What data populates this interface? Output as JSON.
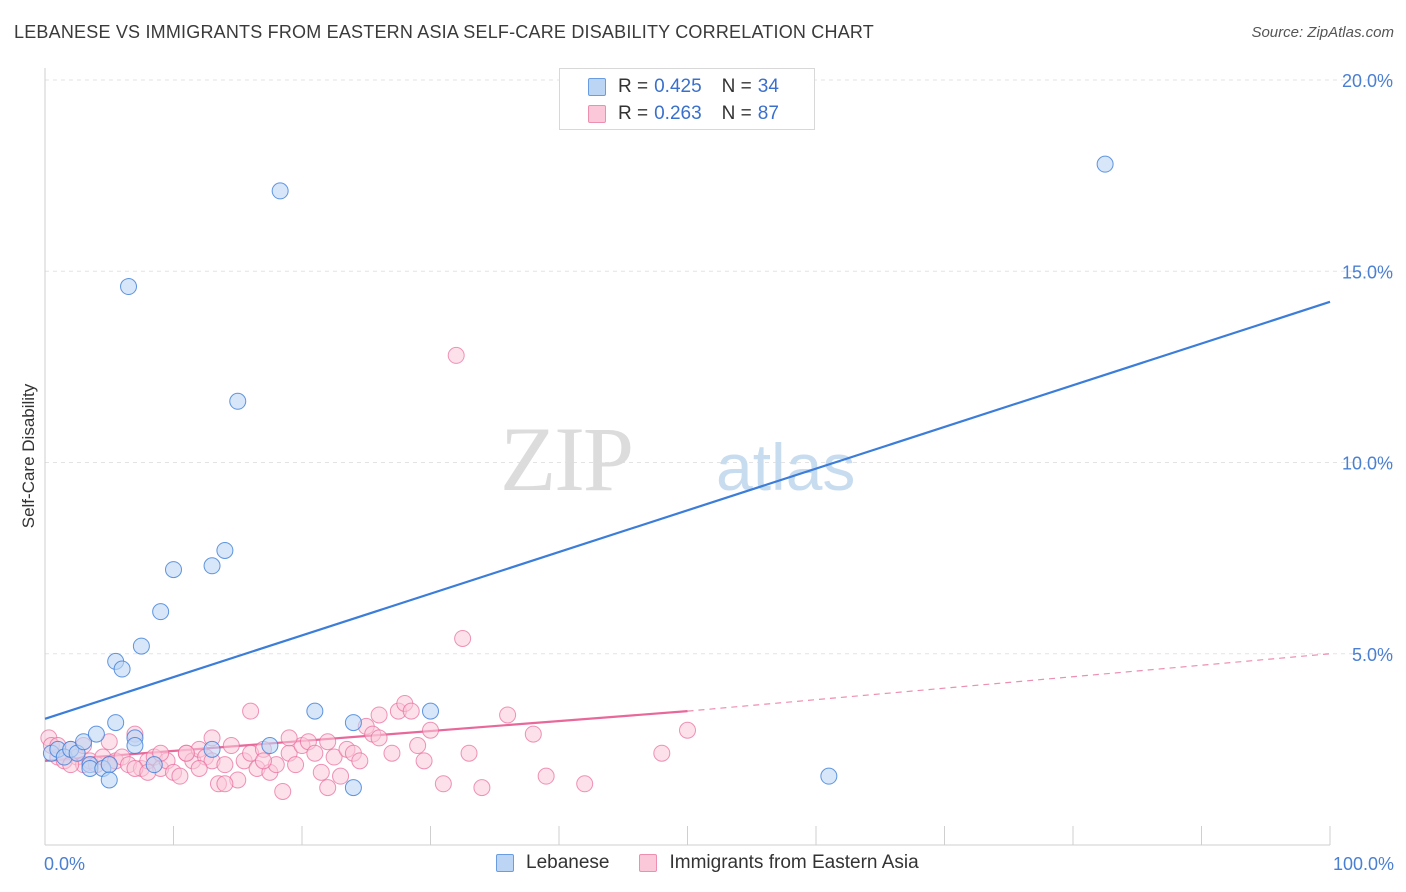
{
  "title": "LEBANESE VS IMMIGRANTS FROM EASTERN ASIA SELF-CARE DISABILITY CORRELATION CHART",
  "source": "Source: ZipAtlas.com",
  "watermark": {
    "bold": "ZIP",
    "light": "atlas"
  },
  "legend_top": [
    {
      "r_label": "R =",
      "r_value": "0.425",
      "n_label": "N =",
      "n_value": "34"
    },
    {
      "r_label": "R =",
      "r_value": "0.263",
      "n_label": "N =",
      "n_value": "87"
    }
  ],
  "legend_bottom": [
    "Lebanese",
    "Immigrants from Eastern Asia"
  ],
  "colors": {
    "blue": "#3b7dd8",
    "blue_fill": "#bcd5f5",
    "pink": "#e8689a",
    "pink_fill": "#fac8d8",
    "axis_text": "#4a7fd1"
  },
  "chart_data": {
    "type": "scatter",
    "title": "LEBANESE VS IMMIGRANTS FROM EASTERN ASIA SELF-CARE DISABILITY CORRELATION CHART",
    "xlabel": "",
    "ylabel": "Self-Care Disability",
    "xlim": [
      0,
      100
    ],
    "ylim": [
      0,
      20
    ],
    "x_ticks": [
      "0.0%",
      "100.0%"
    ],
    "y_ticks": [
      "5.0%",
      "10.0%",
      "15.0%",
      "20.0%"
    ],
    "y_tick_values": [
      5,
      10,
      15,
      20
    ],
    "series": [
      {
        "name": "Lebanese",
        "r": 0.425,
        "n": 34,
        "points": [
          [
            0.5,
            2.4
          ],
          [
            1,
            2.5
          ],
          [
            1.5,
            2.3
          ],
          [
            2,
            2.5
          ],
          [
            2.5,
            2.4
          ],
          [
            3,
            2.7
          ],
          [
            3.5,
            2.1
          ],
          [
            3.5,
            2.0
          ],
          [
            4,
            2.9
          ],
          [
            4.5,
            2.0
          ],
          [
            5,
            2.1
          ],
          [
            5,
            1.7
          ],
          [
            5.5,
            3.2
          ],
          [
            5.5,
            4.8
          ],
          [
            6,
            4.6
          ],
          [
            6.5,
            14.6
          ],
          [
            7,
            2.8
          ],
          [
            7,
            2.6
          ],
          [
            7.5,
            5.2
          ],
          [
            8.5,
            2.1
          ],
          [
            9,
            6.1
          ],
          [
            10,
            7.2
          ],
          [
            13,
            2.5
          ],
          [
            13,
            7.3
          ],
          [
            14,
            7.7
          ],
          [
            15,
            11.6
          ],
          [
            17.5,
            2.6
          ],
          [
            18.3,
            17.1
          ],
          [
            21,
            3.5
          ],
          [
            24,
            1.5
          ],
          [
            24,
            3.2
          ],
          [
            30,
            3.5
          ],
          [
            61,
            1.8
          ],
          [
            82.5,
            17.8
          ]
        ],
        "trend": {
          "x": [
            0,
            100
          ],
          "y": [
            3.3,
            14.2
          ]
        }
      },
      {
        "name": "Immigrants from Eastern Asia",
        "r": 0.263,
        "n": 87,
        "points": [
          [
            0.3,
            2.8
          ],
          [
            0.5,
            2.6
          ],
          [
            1,
            2.3
          ],
          [
            1.5,
            2.2
          ],
          [
            2,
            2.5
          ],
          [
            2.5,
            2.3
          ],
          [
            3,
            2.1
          ],
          [
            3.5,
            2.2
          ],
          [
            4,
            2.1
          ],
          [
            4.5,
            2.3
          ],
          [
            5,
            2.1
          ],
          [
            5.5,
            2.2
          ],
          [
            6,
            2.3
          ],
          [
            6.5,
            2.1
          ],
          [
            7,
            2.9
          ],
          [
            7.5,
            2.0
          ],
          [
            8,
            2.2
          ],
          [
            8.5,
            2.3
          ],
          [
            9,
            2.0
          ],
          [
            9.5,
            2.2
          ],
          [
            10,
            1.9
          ],
          [
            10.5,
            1.8
          ],
          [
            11,
            2.4
          ],
          [
            11.5,
            2.2
          ],
          [
            12,
            2.5
          ],
          [
            12.5,
            2.3
          ],
          [
            13,
            2.2
          ],
          [
            13.5,
            1.6
          ],
          [
            14,
            2.1
          ],
          [
            14.5,
            2.6
          ],
          [
            15,
            1.7
          ],
          [
            15.5,
            2.2
          ],
          [
            16,
            2.4
          ],
          [
            16.5,
            2.0
          ],
          [
            17,
            2.5
          ],
          [
            17.5,
            1.9
          ],
          [
            18,
            2.1
          ],
          [
            18.5,
            1.4
          ],
          [
            19,
            2.4
          ],
          [
            19.5,
            2.1
          ],
          [
            20,
            2.6
          ],
          [
            20.5,
            2.7
          ],
          [
            21,
            2.4
          ],
          [
            21.5,
            1.9
          ],
          [
            22,
            2.7
          ],
          [
            22.5,
            2.3
          ],
          [
            23,
            1.8
          ],
          [
            23.5,
            2.5
          ],
          [
            24,
            2.4
          ],
          [
            24.5,
            2.2
          ],
          [
            25,
            3.1
          ],
          [
            25.5,
            2.9
          ],
          [
            26,
            2.8
          ],
          [
            27,
            2.4
          ],
          [
            27.5,
            3.5
          ],
          [
            28,
            3.7
          ],
          [
            28.5,
            3.5
          ],
          [
            29,
            2.6
          ],
          [
            29.5,
            2.2
          ],
          [
            30,
            3.0
          ],
          [
            31,
            1.6
          ],
          [
            32,
            12.8
          ],
          [
            32.5,
            5.4
          ],
          [
            33,
            2.4
          ],
          [
            34,
            1.5
          ],
          [
            36,
            3.4
          ],
          [
            38,
            2.9
          ],
          [
            39,
            1.8
          ],
          [
            42,
            1.6
          ],
          [
            48,
            2.4
          ],
          [
            50,
            3.0
          ],
          [
            1,
            2.6
          ],
          [
            2,
            2.1
          ],
          [
            3,
            2.6
          ],
          [
            5,
            2.7
          ],
          [
            7,
            2.0
          ],
          [
            8,
            1.9
          ],
          [
            9,
            2.4
          ],
          [
            11,
            2.4
          ],
          [
            12,
            2.0
          ],
          [
            13,
            2.8
          ],
          [
            14,
            1.6
          ],
          [
            16,
            3.5
          ],
          [
            17,
            2.2
          ],
          [
            19,
            2.8
          ],
          [
            22,
            1.5
          ],
          [
            26,
            3.4
          ]
        ],
        "trend_solid": {
          "x": [
            0,
            50
          ],
          "y": [
            2.2,
            3.5
          ]
        },
        "trend_dashed": {
          "x": [
            50,
            100
          ],
          "y": [
            3.5,
            5.0
          ]
        }
      }
    ]
  }
}
